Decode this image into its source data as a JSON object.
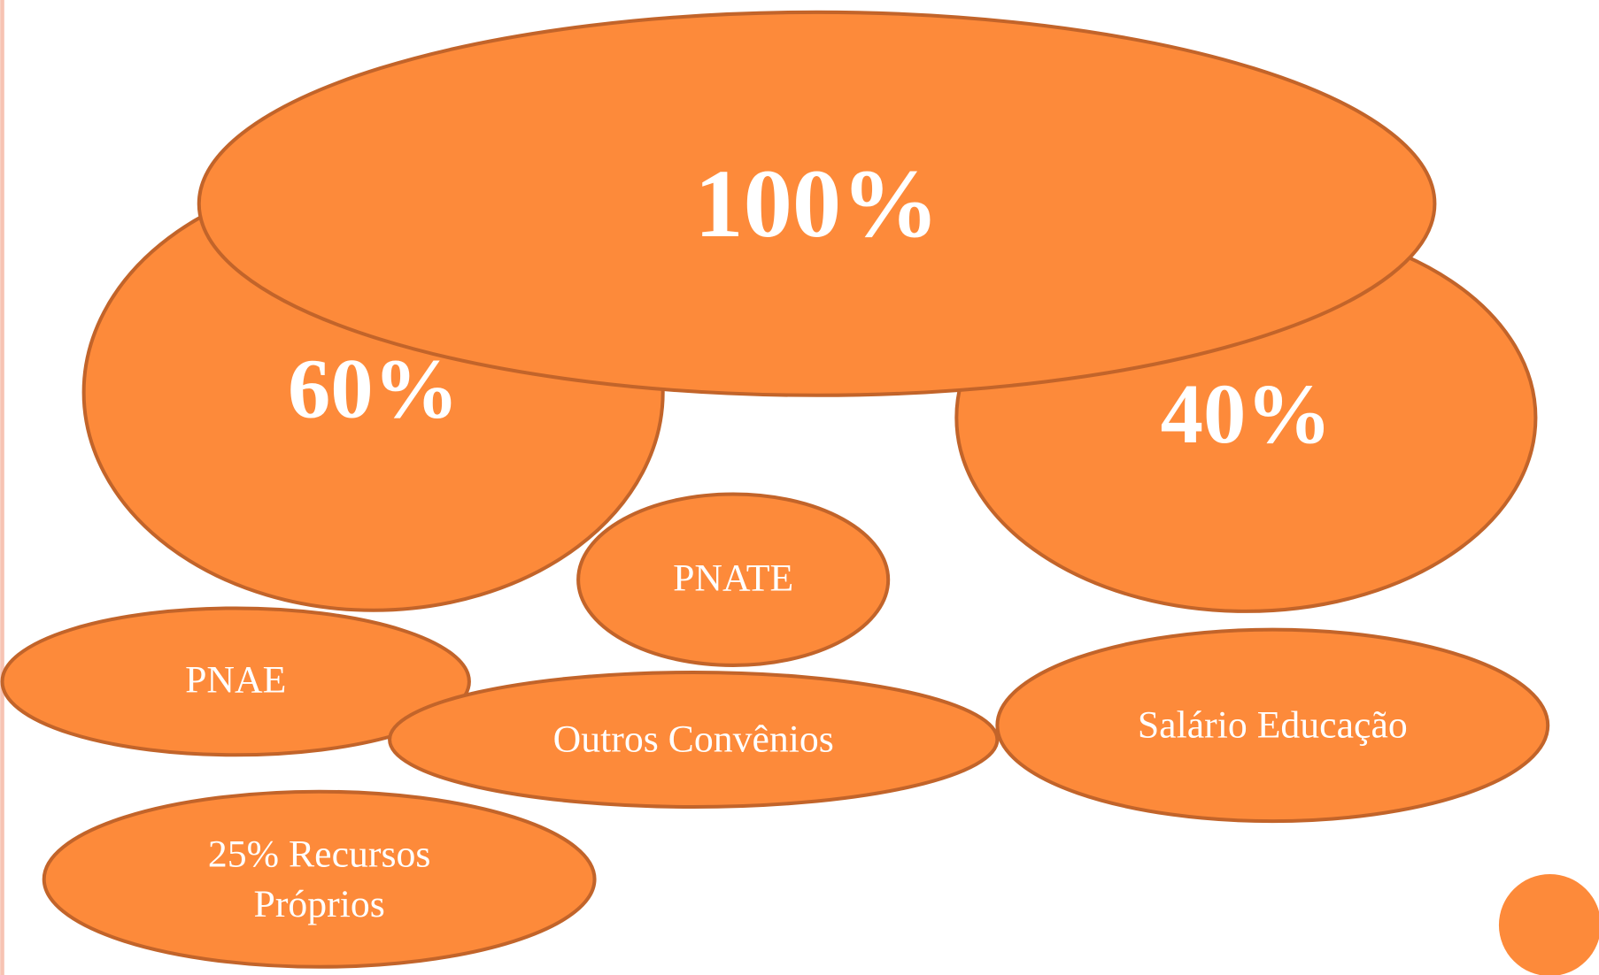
{
  "nodes": [
    {
      "label": "60%"
    },
    {
      "label": "40%"
    },
    {
      "label": "100%"
    },
    {
      "label": "PNATE"
    },
    {
      "label": "PNAE"
    },
    {
      "label": "Outros Convênios"
    },
    {
      "label": "Salário Educação"
    },
    {
      "lines": [
        "25% Recursos",
        "Próprios"
      ]
    }
  ]
}
